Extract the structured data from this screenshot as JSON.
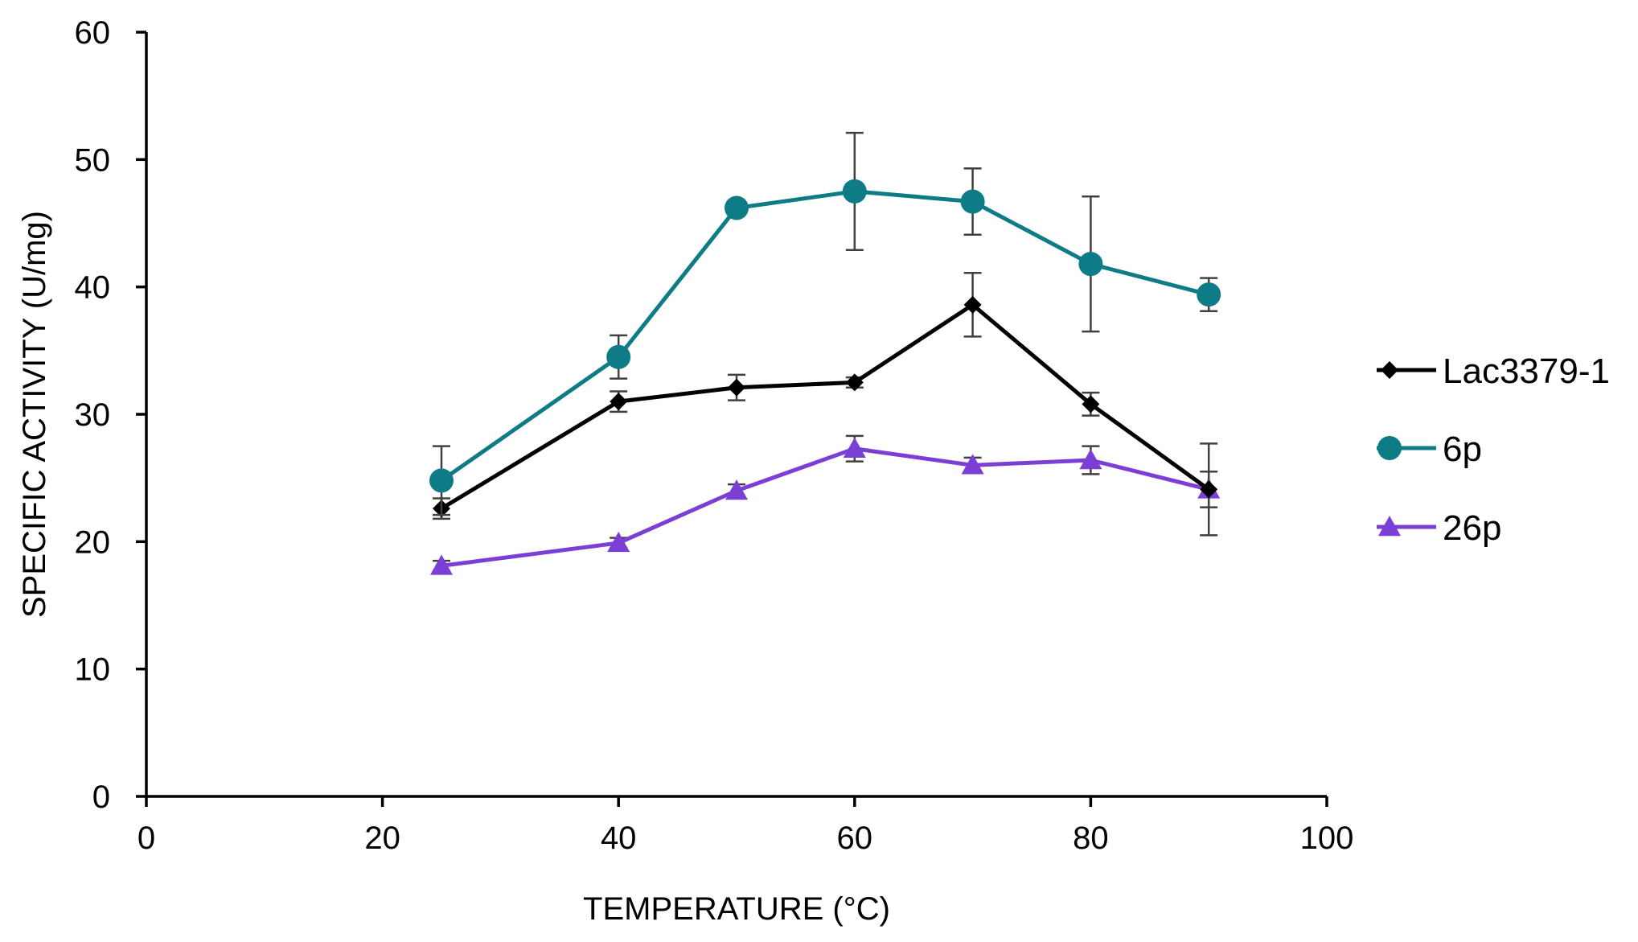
{
  "chart_data": {
    "type": "line",
    "title": "",
    "xlabel": "TEMPERATURE (°C)",
    "ylabel": "SPECIFIC ACTIVITY (U/mg)",
    "xlim": [
      0,
      100
    ],
    "ylim": [
      0,
      60
    ],
    "xticks": [
      0,
      20,
      40,
      60,
      80,
      100
    ],
    "yticks": [
      0,
      10,
      20,
      30,
      40,
      50,
      60
    ],
    "grid": false,
    "legend_position": "right",
    "x": [
      25,
      40,
      50,
      60,
      70,
      80,
      90
    ],
    "series": [
      {
        "name": "Lac3379-1",
        "color": "#000000",
        "marker": "diamond",
        "values": [
          22.6,
          31.0,
          32.1,
          32.5,
          38.6,
          30.8,
          24.1
        ],
        "errors": [
          0.8,
          0.8,
          1.0,
          0.4,
          2.5,
          0.9,
          3.6
        ]
      },
      {
        "name": "6p",
        "color": "#0e7c86",
        "marker": "circle",
        "values": [
          24.8,
          34.5,
          46.2,
          47.5,
          46.7,
          41.8,
          39.4
        ],
        "errors": [
          2.7,
          1.7,
          0.4,
          4.6,
          2.6,
          5.3,
          1.3
        ]
      },
      {
        "name": "26p",
        "color": "#7b3fd6",
        "marker": "triangle",
        "values": [
          18.1,
          19.9,
          24.0,
          27.3,
          26.0,
          26.4,
          24.1
        ],
        "errors": [
          0.4,
          0.4,
          0.5,
          1.0,
          0.6,
          1.1,
          1.4
        ]
      }
    ]
  }
}
